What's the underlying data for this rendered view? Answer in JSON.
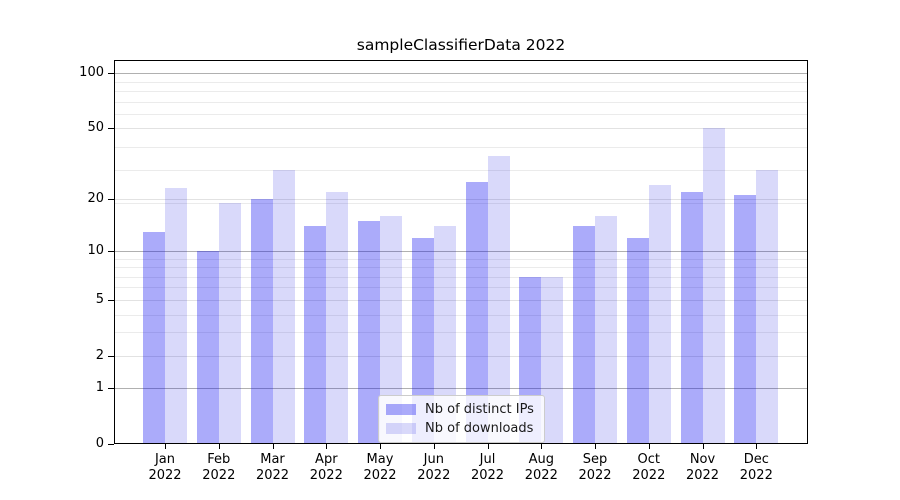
{
  "chart_data": {
    "type": "bar",
    "title": "sampleClassifierData 2022",
    "categories": [
      "Jan",
      "Feb",
      "Mar",
      "Apr",
      "May",
      "Jun",
      "Jul",
      "Aug",
      "Sep",
      "Oct",
      "Nov",
      "Dec"
    ],
    "year_line": "2022",
    "series": [
      {
        "name": "Nb of distinct IPs",
        "color": "rgba(0,0,240,0.33)",
        "values": [
          13,
          10,
          20,
          14,
          15,
          12,
          25,
          7,
          14,
          12,
          22,
          21
        ]
      },
      {
        "name": "Nb of downloads",
        "color": "rgba(0,0,220,0.15)",
        "values": [
          23,
          19,
          29,
          22,
          16,
          14,
          35,
          7,
          16,
          24,
          50,
          29
        ]
      }
    ],
    "yscale": "log(1+y)",
    "ylim": [
      0,
      117
    ],
    "yticks": [
      0,
      1,
      2,
      5,
      10,
      20,
      50,
      100
    ],
    "yticks_emphasized": [
      1,
      10,
      100
    ],
    "yticks_minor": [
      3,
      4,
      6,
      7,
      8,
      9,
      19,
      29,
      39,
      59,
      69,
      79,
      89
    ],
    "grid": "both",
    "legend_position": "lower center",
    "colors": {
      "grid_major_dark": "#b0b0b0",
      "grid_major": "#e2e2e2",
      "grid_minor": "#ebebeb",
      "spine": "#000000",
      "legend_border": "#cccccc"
    }
  }
}
